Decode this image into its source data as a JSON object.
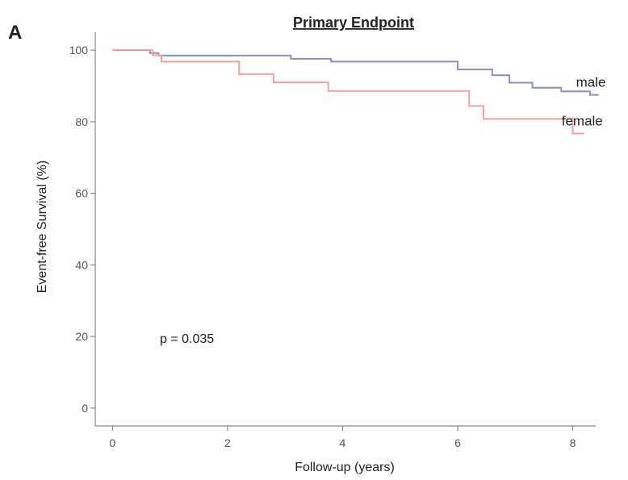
{
  "panel_label": "A",
  "chart_data": {
    "type": "line",
    "title": "Primary Endpoint",
    "xlabel": "Follow-up (years)",
    "ylabel": "Event-free Survival (%)",
    "xlim": [
      -0.3,
      8.4
    ],
    "ylim": [
      -5,
      105
    ],
    "xticks": [
      0,
      2,
      4,
      6,
      8
    ],
    "yticks": [
      0,
      20,
      40,
      60,
      80,
      100
    ],
    "grid": false,
    "annotation": "p = 0.035",
    "series": [
      {
        "name": "male",
        "color": "#8a8fbf",
        "points": [
          [
            0,
            100
          ],
          [
            0.5,
            100
          ],
          [
            0.65,
            99.2
          ],
          [
            0.8,
            98.5
          ],
          [
            3.0,
            98.5
          ],
          [
            3.1,
            97.6
          ],
          [
            3.7,
            97.6
          ],
          [
            3.8,
            96.8
          ],
          [
            5.9,
            96.8
          ],
          [
            6.0,
            94.6
          ],
          [
            6.5,
            94.6
          ],
          [
            6.6,
            93.0
          ],
          [
            6.8,
            93.0
          ],
          [
            6.9,
            90.9
          ],
          [
            7.2,
            90.9
          ],
          [
            7.3,
            89.5
          ],
          [
            7.7,
            89.5
          ],
          [
            7.8,
            88.5
          ],
          [
            8.2,
            88.5
          ],
          [
            8.3,
            87.5
          ],
          [
            8.45,
            87.5
          ]
        ]
      },
      {
        "name": "female",
        "color": "#f2a0a0",
        "points": [
          [
            0,
            100
          ],
          [
            0.55,
            100
          ],
          [
            0.7,
            98.6
          ],
          [
            0.85,
            96.8
          ],
          [
            2.05,
            96.8
          ],
          [
            2.2,
            93.3
          ],
          [
            2.7,
            93.3
          ],
          [
            2.8,
            91.0
          ],
          [
            3.6,
            91.0
          ],
          [
            3.75,
            88.6
          ],
          [
            6.1,
            88.6
          ],
          [
            6.2,
            84.4
          ],
          [
            6.35,
            84.4
          ],
          [
            6.45,
            80.8
          ],
          [
            7.9,
            80.8
          ],
          [
            8.0,
            76.7
          ],
          [
            8.2,
            76.7
          ]
        ]
      }
    ]
  }
}
